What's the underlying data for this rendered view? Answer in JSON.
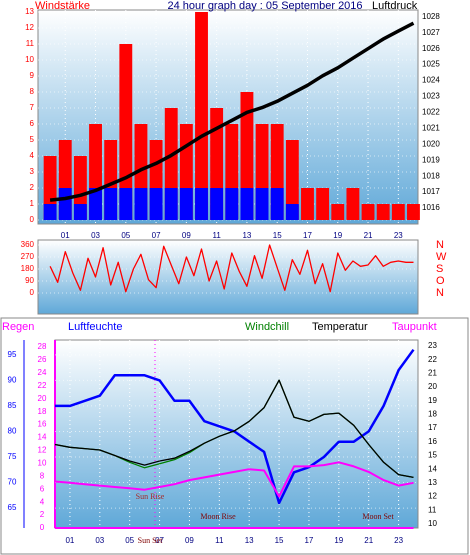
{
  "chart_data": [
    {
      "type": "bar",
      "title": "24 hour graph day : 05 September 2016",
      "x": [
        0,
        1,
        2,
        3,
        4,
        5,
        6,
        7,
        8,
        9,
        10,
        11,
        12,
        13,
        14,
        15,
        16,
        17,
        18,
        19,
        20,
        21,
        22,
        23,
        24
      ],
      "xlim": [
        -0.8,
        24.3
      ],
      "xticks": [
        {
          "value": 1,
          "label": "01"
        },
        {
          "value": 3,
          "label": "03"
        },
        {
          "value": 5,
          "label": "05"
        },
        {
          "value": 7,
          "label": "07"
        },
        {
          "value": 9,
          "label": "09"
        },
        {
          "value": 11,
          "label": "11"
        },
        {
          "value": 13,
          "label": "13"
        },
        {
          "value": 15,
          "label": "15"
        },
        {
          "value": 17,
          "label": "17"
        },
        {
          "value": 19,
          "label": "19"
        },
        {
          "value": 21,
          "label": "21"
        },
        {
          "value": 23,
          "label": "23"
        }
      ],
      "ylim": [
        0,
        13
      ],
      "yticks": [
        0,
        1,
        2,
        3,
        4,
        5,
        6,
        7,
        8,
        9,
        10,
        11,
        12,
        13
      ],
      "y2lim": [
        1015.25,
        1028.3
      ],
      "y2ticks": [
        1016,
        1017,
        1018,
        1019,
        1020,
        1021,
        1022,
        1023,
        1024,
        1025,
        1026,
        1027,
        1028
      ],
      "grid": true,
      "series": [
        {
          "name": "Windstärke",
          "type": "bar",
          "color": "#ff0000",
          "values": [
            4,
            5,
            4,
            6,
            5,
            11,
            6,
            5,
            7,
            6,
            13,
            7,
            6,
            8,
            6,
            6,
            5,
            2,
            2,
            1,
            2,
            1,
            1,
            1,
            1
          ]
        },
        {
          "type": "bar",
          "color": "#0000ff",
          "values": [
            1,
            2,
            1,
            2,
            2,
            2,
            2,
            2,
            2,
            2,
            2,
            2,
            2,
            2,
            2,
            2,
            1,
            0,
            0,
            0,
            0,
            0,
            0,
            0,
            0
          ]
        },
        {
          "name": "Luftdruck",
          "type": "line",
          "axis": "y2",
          "color": "#000000",
          "values": [
            1016.5,
            1016.6,
            1016.8,
            1017.1,
            1017.5,
            1017.9,
            1018.4,
            1018.8,
            1019.3,
            1019.9,
            1020.5,
            1021,
            1021.5,
            1022,
            1022.3,
            1022.7,
            1023.2,
            1023.7,
            1024.3,
            1024.8,
            1025.4,
            1026,
            1026.6,
            1027.1,
            1027.6
          ]
        }
      ]
    },
    {
      "type": "line",
      "x": [
        0,
        0.5,
        1,
        1.5,
        2,
        2.5,
        3,
        3.5,
        4,
        4.5,
        5,
        5.5,
        6,
        6.5,
        7,
        7.5,
        8,
        8.5,
        9,
        9.5,
        10,
        10.5,
        11,
        11.5,
        12,
        12.5,
        13,
        13.5,
        14,
        14.5,
        15,
        15.5,
        16,
        16.5,
        17,
        17.5,
        18,
        18.5,
        19,
        19.5,
        20,
        20.5,
        21,
        21.5,
        22,
        22.5,
        23,
        23.5,
        24
      ],
      "xlim": [
        -0.8,
        24.3
      ],
      "ylim": [
        0,
        360
      ],
      "yticks": [
        0,
        90,
        180,
        270,
        360
      ],
      "y2ticks": [
        {
          "value": 360,
          "label": "N"
        },
        {
          "value": 270,
          "label": "W"
        },
        {
          "value": 180,
          "label": "S"
        },
        {
          "value": 90,
          "label": "O"
        },
        {
          "value": 0,
          "label": "N"
        }
      ],
      "grid": true,
      "series": [
        {
          "type": "line",
          "color": "#ff0000",
          "values": [
            200,
            80,
            310,
            150,
            20,
            260,
            120,
            340,
            60,
            230,
            10,
            180,
            290,
            100,
            40,
            350,
            210,
            70,
            270,
            130,
            330,
            90,
            240,
            30,
            300,
            160,
            50,
            280,
            110,
            360,
            190,
            20,
            250,
            140,
            320,
            70,
            220,
            10,
            300,
            170,
            240,
            200,
            210,
            280,
            200,
            230,
            240,
            230,
            230
          ]
        }
      ]
    },
    {
      "type": "line",
      "x": [
        0,
        1,
        2,
        3,
        4,
        5,
        6,
        7,
        8,
        9,
        10,
        11,
        12,
        13,
        14,
        15,
        16,
        17,
        18,
        19,
        20,
        21,
        22,
        23,
        24
      ],
      "xlim": [
        0,
        24.3
      ],
      "xticks": [
        {
          "value": 1,
          "label": "01"
        },
        {
          "value": 3,
          "label": "03"
        },
        {
          "value": 5,
          "label": "05"
        },
        {
          "value": 7,
          "label": "07"
        },
        {
          "value": 9,
          "label": "09"
        },
        {
          "value": 11,
          "label": "11"
        },
        {
          "value": 13,
          "label": "13"
        },
        {
          "value": 15,
          "label": "15"
        },
        {
          "value": 17,
          "label": "17"
        },
        {
          "value": 19,
          "label": "19"
        },
        {
          "value": 21,
          "label": "21"
        },
        {
          "value": 23,
          "label": "23"
        }
      ],
      "ylim": [
        61.1,
        97.9
      ],
      "yticks": [
        65,
        70,
        75,
        80,
        85,
        90,
        95
      ],
      "y2lim": [
        9.7,
        23.44
      ],
      "y2ticks": [
        10,
        11,
        12,
        13,
        14,
        15,
        16,
        17,
        18,
        19,
        20,
        21,
        22,
        23
      ],
      "y3lim": [
        0,
        29.1
      ],
      "y3ticks": [
        0,
        2,
        4,
        6,
        8,
        10,
        12,
        14,
        16,
        18,
        20,
        22,
        24,
        26,
        28
      ],
      "grid": true,
      "annotations": [
        "Sun Rise",
        "Moon Rise",
        "Moon Set",
        "Sun Set"
      ],
      "series": [
        {
          "name": "Regen",
          "axis": "y3",
          "color": "#ff00ff",
          "values": [
            0,
            0,
            0,
            0,
            0,
            0,
            0,
            0,
            0,
            0,
            0,
            0,
            0,
            0,
            0,
            0,
            0,
            0,
            0,
            0,
            0,
            0,
            0,
            0,
            0
          ]
        },
        {
          "name": "Luftfeuchte",
          "axis": "y",
          "color": "#0000ff",
          "values": [
            85,
            85,
            86,
            87,
            91,
            91,
            91,
            90,
            86,
            86,
            82,
            81,
            80,
            78,
            76,
            66,
            72,
            73,
            75,
            78,
            78,
            80,
            85,
            92,
            96
          ]
        },
        {
          "name": "Windchill",
          "axis": "y2",
          "color": "#008000",
          "values": [
            15.8,
            15.6,
            15.5,
            15.4,
            15,
            14.5,
            14.1,
            14.4,
            14.7,
            15.2,
            15.9,
            16.4,
            16.8,
            17.5,
            18.5,
            20.5,
            17.8,
            17.5,
            18,
            18.1,
            17.2,
            15.8,
            14.5,
            13.6,
            13.4
          ]
        },
        {
          "name": "Temperatur",
          "axis": "y2",
          "color": "#000000",
          "values": [
            15.8,
            15.6,
            15.5,
            15.4,
            15,
            14.6,
            14.3,
            14.6,
            14.8,
            15.3,
            15.9,
            16.4,
            16.8,
            17.5,
            18.5,
            20.5,
            17.8,
            17.5,
            18,
            18.1,
            17.2,
            15.8,
            14.5,
            13.6,
            13.4
          ]
        },
        {
          "name": "Taupunkt",
          "axis": "y2",
          "color": "#ff00ff",
          "values": [
            13.1,
            13,
            12.9,
            12.8,
            12.7,
            12.6,
            12.5,
            12.7,
            12.9,
            13.2,
            13.4,
            13.6,
            13.8,
            14,
            13.9,
            12,
            14.2,
            14.2,
            14.3,
            14.5,
            14.2,
            13.8,
            13.2,
            12.8,
            13
          ]
        }
      ]
    }
  ]
}
